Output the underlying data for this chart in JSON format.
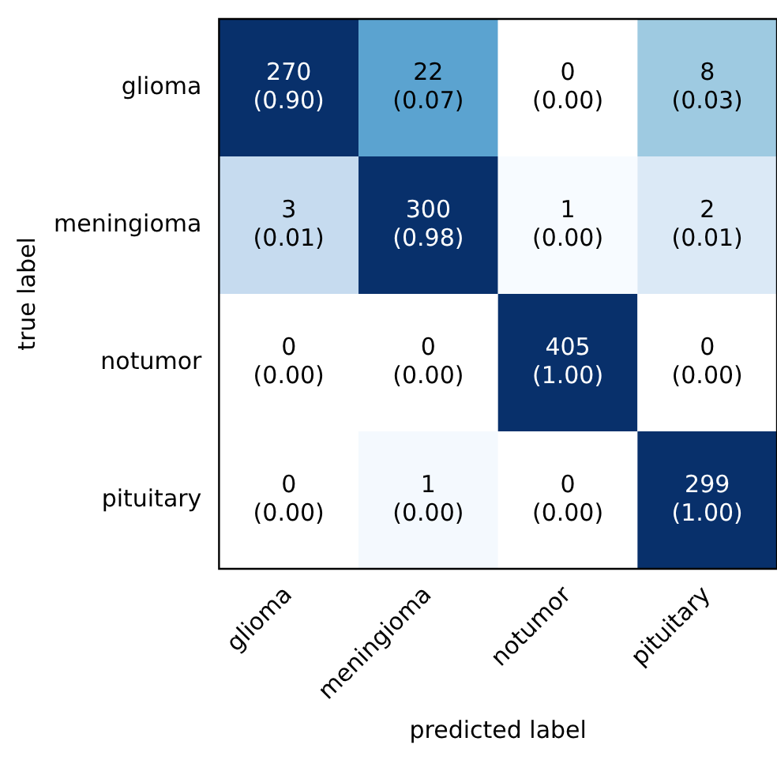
{
  "chart_data": {
    "type": "heatmap",
    "xlabel": "predicted label",
    "ylabel": "true label",
    "categories": [
      "glioma",
      "meningioma",
      "notumor",
      "pituitary"
    ],
    "y_categories": [
      "glioma",
      "meningioma",
      "notumor",
      "pituitary"
    ],
    "cells": [
      [
        270,
        22,
        0,
        8
      ],
      [
        3,
        300,
        1,
        2
      ],
      [
        0,
        0,
        405,
        0
      ],
      [
        0,
        1,
        0,
        299
      ]
    ],
    "data_labels": true,
    "annotations": [
      "(0.90)",
      "(0.07)",
      "(0.00)",
      "(0.03)",
      "(0.01)",
      "(0.98)",
      "(0.00)",
      "(0.01)",
      "(0.00)",
      "(0.00)",
      "(1.00)",
      "(0.00)",
      "(0.00)",
      "(0.00)",
      "(0.00)",
      "(1.00)"
    ],
    "colors": [
      [
        "#08306b",
        "#5ba3d0",
        "#ffffff",
        "#9ecae1"
      ],
      [
        "#c6dbef",
        "#08306b",
        "#f7fbff",
        "#dbe9f6"
      ],
      [
        "#ffffff",
        "#ffffff",
        "#08306b",
        "#ffffff"
      ],
      [
        "#ffffff",
        "#f4f9fe",
        "#ffffff",
        "#08306b"
      ]
    ],
    "grid": false
  }
}
